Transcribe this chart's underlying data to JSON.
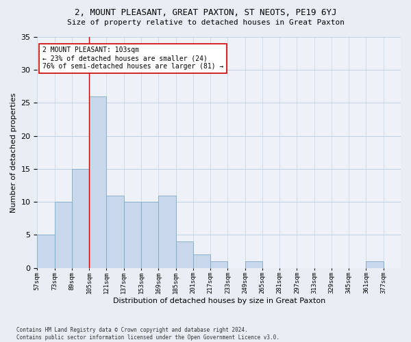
{
  "title": "2, MOUNT PLEASANT, GREAT PAXTON, ST NEOTS, PE19 6YJ",
  "subtitle": "Size of property relative to detached houses in Great Paxton",
  "xlabel": "Distribution of detached houses by size in Great Paxton",
  "ylabel": "Number of detached properties",
  "bar_color": "#c8d8ea",
  "bar_edge_color": "#7aaac8",
  "bin_labels": [
    "57sqm",
    "73sqm",
    "89sqm",
    "105sqm",
    "121sqm",
    "137sqm",
    "153sqm",
    "169sqm",
    "185sqm",
    "201sqm",
    "217sqm",
    "233sqm",
    "249sqm",
    "265sqm",
    "281sqm",
    "297sqm",
    "313sqm",
    "329sqm",
    "345sqm",
    "361sqm",
    "377sqm"
  ],
  "bar_values": [
    5,
    10,
    15,
    26,
    11,
    10,
    10,
    11,
    4,
    2,
    1,
    0,
    1,
    0,
    0,
    0,
    0,
    0,
    0,
    1,
    0
  ],
  "vline_x": 3.0,
  "vline_color": "#cc0000",
  "annotation_text": "2 MOUNT PLEASANT: 103sqm\n← 23% of detached houses are smaller (24)\n76% of semi-detached houses are larger (81) →",
  "annotation_box_color": "#ffffff",
  "annotation_box_edge": "#cc0000",
  "ylim": [
    0,
    35
  ],
  "yticks": [
    0,
    5,
    10,
    15,
    20,
    25,
    30,
    35
  ],
  "footer": "Contains HM Land Registry data © Crown copyright and database right 2024.\nContains public sector information licensed under the Open Government Licence v3.0.",
  "bg_color": "#e8eef4",
  "plot_bg_color": "#eef2f8"
}
